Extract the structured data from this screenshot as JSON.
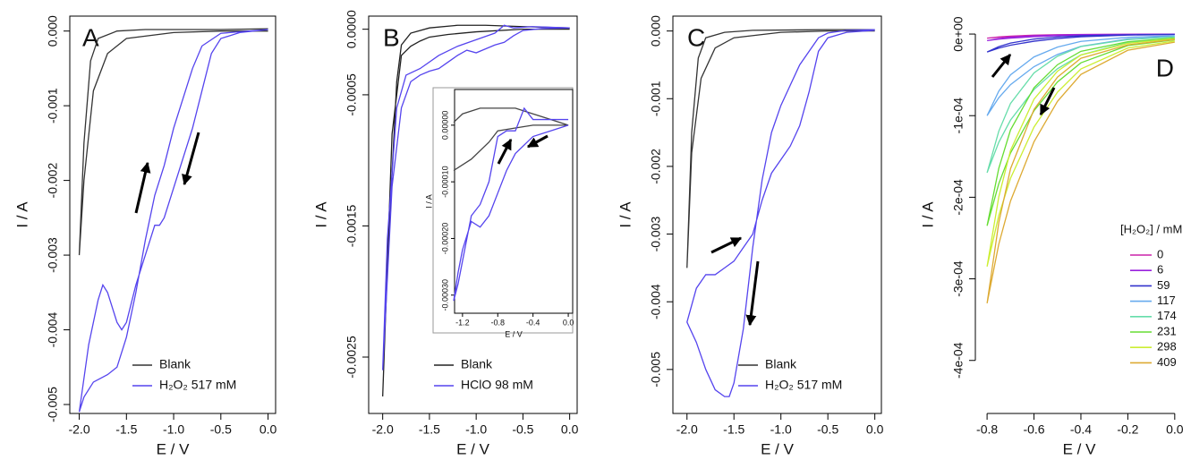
{
  "chart_data": [
    {
      "type": "line",
      "label": "A",
      "xlabel": "E / V",
      "ylabel": "I / A",
      "frame": true,
      "legend": "bottomright",
      "xlim": [
        -2.1,
        0.08
      ],
      "ylim": [
        -0.00512,
        0.0002
      ],
      "xticks": [
        {
          "value": -2,
          "label": "-2.0"
        },
        -1.5,
        {
          "value": -1,
          "label": "-1.0"
        },
        -0.5,
        {
          "value": 0,
          "label": "0.0"
        }
      ],
      "yticks": [
        {
          "value": 0,
          "label": "0.000"
        },
        -0.001,
        -0.002,
        -0.003,
        -0.004,
        -0.005
      ],
      "series": [
        {
          "name": "Blank",
          "color": "#333333",
          "x": [
            0,
            -0.5,
            -1.0,
            -1.5,
            -1.7,
            -1.85,
            -1.95,
            -2.0,
            -1.95,
            -1.88,
            -1.8,
            -1.6,
            -1.3,
            -0.5,
            0
          ],
          "values": [
            0,
            0,
            -2e-05,
            -0.0001,
            -0.0003,
            -0.0008,
            -0.002,
            -0.003,
            -0.0015,
            -0.0004,
            -0.0001,
            0,
            2e-05,
            2e-05,
            3e-05
          ]
        },
        {
          "name": "H₂O₂ 517 mM",
          "color": "#5544ee",
          "x": [
            0,
            -0.3,
            -0.5,
            -0.6,
            -0.7,
            -0.8,
            -0.9,
            -1.0,
            -1.1,
            -1.15,
            -1.2,
            -1.3,
            -1.4,
            -1.5,
            -1.55,
            -1.6,
            -1.7,
            -1.75,
            -1.8,
            -1.9,
            -2.0,
            -1.95,
            -1.85,
            -1.7,
            -1.6,
            -1.5,
            -1.4,
            -1.3,
            -1.2,
            -1.1,
            -1.0,
            -0.9,
            -0.8,
            -0.7,
            -0.5,
            0
          ],
          "values": [
            2e-05,
            -2e-05,
            -0.0001,
            -0.0003,
            -0.0008,
            -0.0013,
            -0.0017,
            -0.0021,
            -0.0025,
            -0.0026,
            -0.0026,
            -0.003,
            -0.0034,
            -0.0039,
            -0.004,
            -0.0039,
            -0.0035,
            -0.0034,
            -0.0036,
            -0.0042,
            -0.0051,
            -0.0049,
            -0.0047,
            -0.0046,
            -0.0045,
            -0.0041,
            -0.0035,
            -0.0028,
            -0.0022,
            -0.0018,
            -0.0013,
            -0.0009,
            -0.0005,
            -0.0002,
            -3e-05,
            2e-05
          ]
        }
      ]
    },
    {
      "type": "line",
      "label": "B",
      "xlabel": "E / V",
      "ylabel": "I / A",
      "frame": true,
      "legend": "bottomright",
      "xlim": [
        -2.15,
        0.08
      ],
      "ylim": [
        -0.00293,
        0.0001
      ],
      "xticks": [
        {
          "value": -2,
          "label": "-2.0"
        },
        -1.5,
        {
          "value": -1,
          "label": "-1.0"
        },
        -0.5,
        {
          "value": 0,
          "label": "0.0"
        }
      ],
      "yticks": [
        {
          "value": 0,
          "label": "0.0000"
        },
        -0.0005,
        -0.0015,
        -0.0025
      ],
      "series": [
        {
          "name": "Blank",
          "color": "#222222",
          "x": [
            0,
            -0.5,
            -1.0,
            -1.3,
            -1.5,
            -1.6,
            -1.7,
            -1.8,
            -1.9,
            -2.0,
            -1.95,
            -1.85,
            -1.8,
            -1.7,
            -1.5,
            -1.2,
            -0.9,
            -0.5,
            0
          ],
          "values": [
            0,
            0,
            -2e-05,
            -4e-05,
            -6e-05,
            -9e-05,
            -0.00013,
            -0.0002,
            -0.0008,
            -0.0028,
            -0.0018,
            -0.0004,
            -0.00012,
            -3e-05,
            1e-05,
            3e-05,
            3e-05,
            2e-05,
            1e-05
          ]
        },
        {
          "name": "HClO 98 mM",
          "color": "#5544ee",
          "x": [
            0,
            -0.3,
            -0.5,
            -0.6,
            -0.7,
            -0.8,
            -0.9,
            -1.0,
            -1.1,
            -1.2,
            -1.3,
            -1.4,
            -1.5,
            -1.6,
            -1.7,
            -1.8,
            -1.9,
            -2.0,
            -1.95,
            -1.85,
            -1.75,
            -1.6,
            -1.4,
            -1.2,
            -1.0,
            -0.8,
            -0.7,
            -0.6,
            -0.4,
            0
          ],
          "values": [
            1e-05,
            5e-06,
            -1e-05,
            -5e-05,
            -0.0001,
            -0.00012,
            -0.00015,
            -0.00018,
            -0.00016,
            -0.0002,
            -0.00025,
            -0.0003,
            -0.00032,
            -0.00035,
            -0.0004,
            -0.0006,
            -0.0012,
            -0.0026,
            -0.0016,
            -0.0006,
            -0.00035,
            -0.0003,
            -0.0002,
            -0.00013,
            -8e-05,
            -3e-05,
            3e-05,
            1e-05,
            2e-05,
            1e-05
          ]
        }
      ]
    },
    {
      "type": "line",
      "xlabel": "E / V",
      "ylabel": "I / A",
      "frame": true,
      "xlim": [
        -1.29,
        0.05
      ],
      "ylim": [
        -0.000332,
        6.3e-05
      ],
      "xticks": [
        -1.2,
        -0.8,
        -0.4,
        {
          "value": 0,
          "label": "0.0"
        }
      ],
      "yticks": [
        {
          "value": 0,
          "label": "0.00000"
        },
        {
          "value": -0.0001,
          "label": "-0.00010"
        },
        {
          "value": -0.0002,
          "label": "-0.00020"
        },
        {
          "value": -0.0003,
          "label": "-0.00030"
        }
      ],
      "series": [
        {
          "color": "#444444",
          "x": [
            -1.3,
            -1.1,
            -0.9,
            -0.8,
            -0.6,
            -0.4,
            -0.2,
            0,
            -0.2,
            -0.4,
            -0.6,
            -0.8,
            -1.0,
            -1.2,
            -1.3
          ],
          "values": [
            -8e-05,
            -6e-05,
            -3e-05,
            -1e-05,
            -5e-06,
            0,
            0,
            0,
            1e-05,
            2e-05,
            3e-05,
            3e-05,
            3e-05,
            2e-05,
            5e-06
          ]
        },
        {
          "color": "#5544ee",
          "x": [
            0,
            -0.2,
            -0.4,
            -0.6,
            -0.7,
            -0.8,
            -0.9,
            -1.0,
            -1.1,
            -1.2,
            -1.25,
            -1.3,
            -1.25,
            -1.2,
            -1.1,
            -1.0,
            -0.9,
            -0.8,
            -0.7,
            -0.6,
            -0.5,
            -0.4,
            -0.2,
            0
          ],
          "values": [
            0,
            -1e-05,
            -2e-05,
            -5e-05,
            -8e-05,
            -0.00012,
            -0.00016,
            -0.00018,
            -0.00017,
            -0.00022,
            -0.00026,
            -0.00031,
            -0.00028,
            -0.00024,
            -0.00016,
            -0.00014,
            -0.0001,
            -2e-05,
            -1e-05,
            -1e-05,
            3e-05,
            1e-05,
            1e-05,
            1e-05
          ]
        }
      ]
    },
    {
      "type": "line",
      "label": "C",
      "xlabel": "E / V",
      "ylabel": "I / A",
      "frame": true,
      "legend": "bottomright",
      "xlim": [
        -2.15,
        0.07
      ],
      "ylim": [
        -0.00565,
        0.00022
      ],
      "xticks": [
        {
          "value": -2,
          "label": "-2.0"
        },
        -1.5,
        {
          "value": -1,
          "label": "-1.0"
        },
        -0.5,
        {
          "value": 0,
          "label": "0.0"
        }
      ],
      "yticks": [
        {
          "value": 0,
          "label": "0.000"
        },
        -0.001,
        -0.002,
        -0.003,
        -0.004,
        -0.005
      ],
      "series": [
        {
          "name": "Blank",
          "color": "#333333",
          "x": [
            0,
            -0.5,
            -1.0,
            -1.5,
            -1.7,
            -1.85,
            -1.95,
            -2.0,
            -1.95,
            -1.88,
            -1.8,
            -1.6,
            -1.3,
            -0.5,
            0
          ],
          "values": [
            0,
            0,
            -2e-05,
            -0.0001,
            -0.00025,
            -0.0007,
            -0.0018,
            -0.0035,
            -0.0015,
            -0.0004,
            -0.0001,
            -2e-05,
            1e-05,
            2e-05,
            2e-05
          ]
        },
        {
          "name": "H₂O₂ 517 mM",
          "color": "#5544ee",
          "x": [
            0,
            -0.3,
            -0.5,
            -0.6,
            -0.7,
            -0.8,
            -0.9,
            -1.0,
            -1.1,
            -1.2,
            -1.3,
            -1.4,
            -1.5,
            -1.6,
            -1.7,
            -1.75,
            -1.8,
            -1.9,
            -2.0,
            -1.9,
            -1.8,
            -1.7,
            -1.6,
            -1.55,
            -1.5,
            -1.4,
            -1.3,
            -1.2,
            -1.1,
            -1.0,
            -0.9,
            -0.8,
            -0.7,
            -0.6,
            -0.5,
            -0.3,
            0
          ],
          "values": [
            1e-05,
            -2e-05,
            -0.0001,
            -0.0003,
            -0.0009,
            -0.0014,
            -0.0017,
            -0.0019,
            -0.0021,
            -0.0025,
            -0.003,
            -0.0032,
            -0.0034,
            -0.0035,
            -0.0036,
            -0.0036,
            -0.0036,
            -0.0038,
            -0.0043,
            -0.0046,
            -0.005,
            -0.0053,
            -0.0054,
            -0.0054,
            -0.0052,
            -0.0044,
            -0.0032,
            -0.0022,
            -0.0015,
            -0.0011,
            -0.0008,
            -0.0005,
            -0.0003,
            -0.0001,
            -3e-05,
            1e-05,
            2e-05
          ]
        }
      ]
    },
    {
      "type": "line",
      "label": "D",
      "xlabel": "E / V",
      "ylabel": "I / A",
      "frame": false,
      "legend": "right",
      "legend_title": "[H₂O₂] / mM",
      "xlim": [
        -0.85,
        0.035
      ],
      "ylim": [
        -0.000465,
        2.2e-05
      ],
      "xticks": [
        -0.8,
        -0.6,
        -0.4,
        -0.2,
        {
          "value": 0,
          "label": "0.0"
        }
      ],
      "yticks": [
        {
          "value": 0,
          "label": "0e+00"
        },
        {
          "value": -0.0001,
          "label": "-1e-04"
        },
        {
          "value": -0.0002,
          "label": "-2e-04"
        },
        {
          "value": -0.0003,
          "label": "-3e-04"
        },
        {
          "value": -0.0004,
          "label": "-4e-04"
        }
      ],
      "x": [
        0,
        -0.2,
        -0.4,
        -0.5,
        -0.6,
        -0.7,
        -0.75,
        -0.8,
        -0.75,
        -0.7,
        -0.6,
        -0.5,
        -0.4,
        -0.2,
        0
      ],
      "series": [
        {
          "name": "0",
          "color": "#cc22aa",
          "values": [
            -1.5e-07,
            -3e-07,
            -7.5e-07,
            -1.25e-06,
            -2e-06,
            -3.1e-06,
            -3.9e-06,
            -5e-06,
            -3.5e-06,
            -2.5e-06,
            -1.4e-06,
            -8e-07,
            -4.5e-07,
            -2e-07,
            -1e-07
          ]
        },
        {
          "name": "6",
          "color": "#9922dd",
          "values": [
            -2.4e-07,
            -4.8e-07,
            -1.2e-06,
            -2e-06,
            -3.2e-06,
            -4.96e-06,
            -6.24e-06,
            -8e-06,
            -5.6e-06,
            -4e-06,
            -2.24e-06,
            -1.28e-06,
            -7.2e-07,
            -3.2e-07,
            -1.6e-07
          ]
        },
        {
          "name": "59",
          "color": "#3333cc",
          "values": [
            -6.6e-07,
            -1.32e-06,
            -3.3e-06,
            -5.5e-06,
            -8.8e-06,
            -1.364e-05,
            -1.716e-05,
            -2.2e-05,
            -1.54e-05,
            -1.1e-05,
            -6.16e-06,
            -3.52e-06,
            -1.98e-06,
            -8.8e-07,
            -4.4e-07
          ]
        },
        {
          "name": "117",
          "color": "#66aaee",
          "values": [
            -3e-06,
            -6e-06,
            -1.5e-05,
            -2.5e-05,
            -4e-05,
            -6.2e-05,
            -7.8e-05,
            -0.0001,
            -7e-05,
            -5e-05,
            -2.8e-05,
            -1.6e-05,
            -9e-06,
            -4e-06,
            -2e-06
          ]
        },
        {
          "name": "174",
          "color": "#66ddaa",
          "values": [
            -5.1e-06,
            -1.02e-05,
            -2.55e-05,
            -4.25e-05,
            -6.8e-05,
            -0.0001054,
            -0.0001326,
            -0.00017,
            -0.000119,
            -8.5e-05,
            -4.76e-05,
            -2.72e-05,
            -1.53e-05,
            -6.8e-06,
            -3.4e-06
          ]
        },
        {
          "name": "231",
          "color": "#66dd33",
          "values": [
            -7.05e-06,
            -1.41e-05,
            -3.525e-05,
            -5.875e-05,
            -9.4e-05,
            -0.0001457,
            -0.0001833,
            -0.000235,
            -0.0001645,
            -0.0001175,
            -6.58e-05,
            -3.76e-05,
            -2.115e-05,
            -9.4e-06,
            -4.7e-06
          ]
        },
        {
          "name": "298",
          "color": "#ccee33",
          "values": [
            -8.55e-06,
            -1.71e-05,
            -4.275e-05,
            -7.125e-05,
            -0.000114,
            -0.0001767,
            -0.0002223,
            -0.000285,
            -0.0001995,
            -0.0001425,
            -7.98e-05,
            -4.56e-05,
            -2.565e-05,
            -1.14e-05,
            -5.7e-06
          ]
        },
        {
          "name": "409",
          "color": "#ddaa33",
          "values": [
            -9.9e-06,
            -1.98e-05,
            -4.95e-05,
            -8.25e-05,
            -0.000132,
            -0.0002046,
            -0.0002574,
            -0.00033,
            -0.000231,
            -0.000165,
            -9.24e-05,
            -5.28e-05,
            -2.97e-05,
            -1.32e-05,
            -6.6e-06
          ]
        }
      ]
    }
  ]
}
